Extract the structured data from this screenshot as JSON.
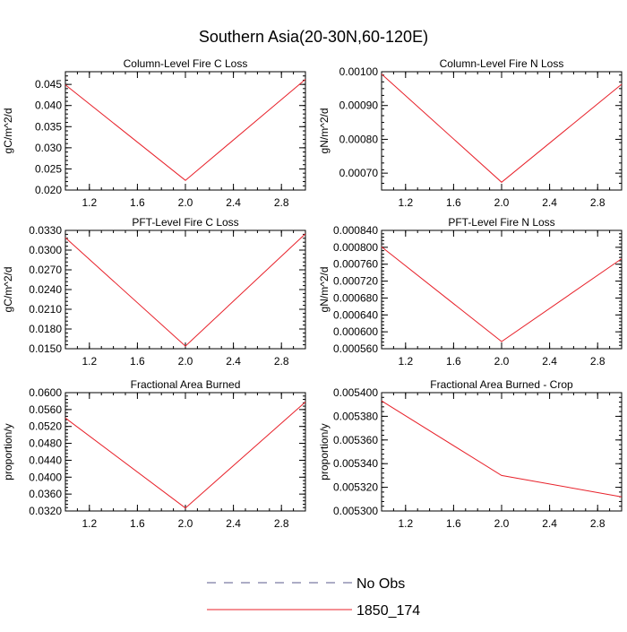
{
  "figure": {
    "title": "Southern Asia(20-30N,60-120E)",
    "legend": [
      {
        "label": "No Obs",
        "color": "#5a5a8c",
        "dash": true
      },
      {
        "label": "1850_174",
        "color": "#e8212a",
        "dash": false
      }
    ]
  },
  "chart_data": [
    {
      "type": "line",
      "title": "Column-Level Fire C Loss",
      "ylabel": "gC/m^2/d",
      "xlim": [
        1.0,
        3.0
      ],
      "ylim": [
        0.02,
        0.048
      ],
      "xticks": [
        "1.2",
        "1.6",
        "2.0",
        "2.4",
        "2.8"
      ],
      "xtick_values": [
        1.2,
        1.6,
        2.0,
        2.4,
        2.8
      ],
      "yticks": [
        "0.020",
        "0.025",
        "0.030",
        "0.035",
        "0.040",
        "0.045"
      ],
      "ytick_values": [
        0.02,
        0.025,
        0.03,
        0.035,
        0.04,
        0.045
      ],
      "series": [
        {
          "name": "1850_174",
          "color": "#e8212a",
          "x": [
            1.0,
            2.0,
            3.0
          ],
          "y": [
            0.0449,
            0.0223,
            0.0462
          ]
        }
      ]
    },
    {
      "type": "line",
      "title": "Column-Level Fire N Loss",
      "ylabel": "gN/m^2/d",
      "xlim": [
        1.0,
        3.0
      ],
      "ylim": [
        0.00065,
        0.001
      ],
      "xticks": [
        "1.2",
        "1.6",
        "2.0",
        "2.4",
        "2.8"
      ],
      "xtick_values": [
        1.2,
        1.6,
        2.0,
        2.4,
        2.8
      ],
      "yticks": [
        "0.00070",
        "0.00080",
        "0.00090",
        "0.00100"
      ],
      "ytick_values": [
        0.0007,
        0.0008,
        0.0009,
        0.001
      ],
      "series": [
        {
          "name": "1850_174",
          "color": "#e8212a",
          "x": [
            1.0,
            2.0,
            3.0
          ],
          "y": [
            0.000993,
            0.000673,
            0.000963
          ]
        }
      ]
    },
    {
      "type": "line",
      "title": "PFT-Level Fire C Loss",
      "ylabel": "gC/m^2/d",
      "xlim": [
        1.0,
        3.0
      ],
      "ylim": [
        0.015,
        0.033
      ],
      "xticks": [
        "1.2",
        "1.6",
        "2.0",
        "2.4",
        "2.8"
      ],
      "xtick_values": [
        1.2,
        1.6,
        2.0,
        2.4,
        2.8
      ],
      "yticks": [
        "0.0150",
        "0.0180",
        "0.0210",
        "0.0240",
        "0.0270",
        "0.0300",
        "0.0330"
      ],
      "ytick_values": [
        0.015,
        0.018,
        0.021,
        0.024,
        0.027,
        0.03,
        0.033
      ],
      "series": [
        {
          "name": "1850_174",
          "color": "#e8212a",
          "x": [
            1.0,
            2.0,
            3.0
          ],
          "y": [
            0.0319,
            0.0154,
            0.0325
          ]
        }
      ]
    },
    {
      "type": "line",
      "title": "PFT-Level Fire N Loss",
      "ylabel": "gN/m^2/d",
      "xlim": [
        1.0,
        3.0
      ],
      "ylim": [
        0.00056,
        0.00084
      ],
      "xticks": [
        "1.2",
        "1.6",
        "2.0",
        "2.4",
        "2.8"
      ],
      "xtick_values": [
        1.2,
        1.6,
        2.0,
        2.4,
        2.8
      ],
      "yticks": [
        "0.000560",
        "0.000600",
        "0.000640",
        "0.000680",
        "0.000720",
        "0.000760",
        "0.000800",
        "0.000840"
      ],
      "ytick_values": [
        0.00056,
        0.0006,
        0.00064,
        0.00068,
        0.00072,
        0.00076,
        0.0008,
        0.00084
      ],
      "series": [
        {
          "name": "1850_174",
          "color": "#e8212a",
          "x": [
            1.0,
            2.0,
            3.0
          ],
          "y": [
            0.000801,
            0.000577,
            0.000773
          ]
        }
      ]
    },
    {
      "type": "line",
      "title": "Fractional Area Burned",
      "ylabel": "proportion/y",
      "xlim": [
        1.0,
        3.0
      ],
      "ylim": [
        0.032,
        0.06
      ],
      "xticks": [
        "1.2",
        "1.6",
        "2.0",
        "2.4",
        "2.8"
      ],
      "xtick_values": [
        1.2,
        1.6,
        2.0,
        2.4,
        2.8
      ],
      "yticks": [
        "0.0320",
        "0.0360",
        "0.0400",
        "0.0440",
        "0.0480",
        "0.0520",
        "0.0560",
        "0.0600"
      ],
      "ytick_values": [
        0.032,
        0.036,
        0.04,
        0.044,
        0.048,
        0.052,
        0.056,
        0.06
      ],
      "series": [
        {
          "name": "1850_174",
          "color": "#e8212a",
          "x": [
            1.0,
            2.0,
            3.0
          ],
          "y": [
            0.054,
            0.0327,
            0.0578
          ]
        }
      ]
    },
    {
      "type": "line",
      "title": "Fractional Area Burned - Crop",
      "ylabel": "proportion/y",
      "xlim": [
        1.0,
        3.0
      ],
      "ylim": [
        0.0053,
        0.0054
      ],
      "xticks": [
        "1.2",
        "1.6",
        "2.0",
        "2.4",
        "2.8"
      ],
      "xtick_values": [
        1.2,
        1.6,
        2.0,
        2.4,
        2.8
      ],
      "yticks": [
        "0.005300",
        "0.005320",
        "0.005340",
        "0.005360",
        "0.005380",
        "0.005400"
      ],
      "ytick_values": [
        0.0053,
        0.00532,
        0.00534,
        0.00536,
        0.00538,
        0.0054
      ],
      "series": [
        {
          "name": "1850_174",
          "color": "#e8212a",
          "x": [
            1.0,
            2.0,
            3.0
          ],
          "y": [
            0.005393,
            0.00533,
            0.005312
          ]
        }
      ]
    }
  ]
}
